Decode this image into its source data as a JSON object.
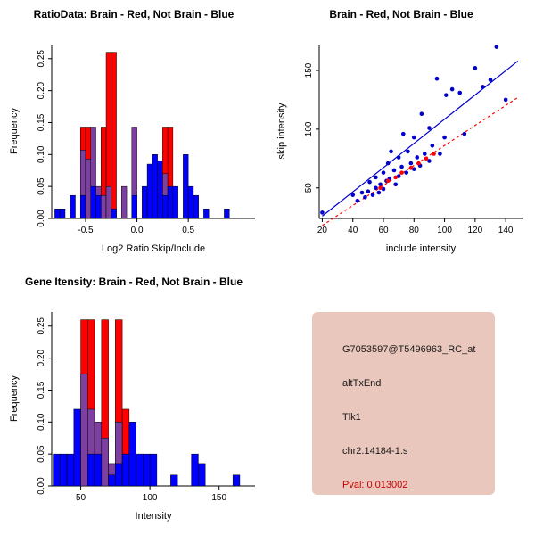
{
  "colors": {
    "red": "#ff0000",
    "blue": "#0000ff",
    "navy": "#0000cc",
    "purple": "#7d40a0",
    "axis": "#000000",
    "pval": "#cc0000",
    "infobox_bg": "#e9c7bc"
  },
  "info_box": {
    "probe_id": "G7053597@T5496963_RC_at",
    "event_type": "altTxEnd",
    "gene_name": "Tlk1",
    "location": "chr2.14184-1.s",
    "pval": "Pval: 0.013002"
  },
  "chart_data": [
    {
      "id": "ratio-hist",
      "type": "bar",
      "title": "RatioData: Brain - Red, Not Brain - Blue",
      "xlabel": "Log2 Ratio Skip/Include",
      "ylabel": "Frequency",
      "xlim": [
        -0.83,
        1.15
      ],
      "ylim": [
        0,
        0.272
      ],
      "xticks": [
        -0.5,
        0,
        0.5
      ],
      "xtick_labels": [
        "-0.5",
        "0.0",
        "0.5"
      ],
      "yticks": [
        0,
        0.05,
        0.1,
        0.15,
        0.2,
        0.25
      ],
      "ytick_labels": [
        "0.00",
        "0.05",
        "0.10",
        "0.15",
        "0.20",
        "0.25"
      ],
      "bin_width": 0.05,
      "bars": [
        {
          "x": -0.8,
          "layers": [
            {
              "color": "blue",
              "h": 0.015
            }
          ]
        },
        {
          "x": -0.75,
          "layers": [
            {
              "color": "blue",
              "h": 0.015
            }
          ]
        },
        {
          "x": -0.65,
          "layers": [
            {
              "color": "blue",
              "h": 0.036
            }
          ]
        },
        {
          "x": -0.55,
          "layers": [
            {
              "color": "red",
              "h": 0.143
            },
            {
              "color": "purple",
              "h": 0.107
            },
            {
              "color": "blue",
              "h": 0.036
            }
          ]
        },
        {
          "x": -0.5,
          "layers": [
            {
              "color": "red",
              "h": 0.143
            },
            {
              "color": "purple",
              "h": 0.093
            }
          ]
        },
        {
          "x": -0.45,
          "layers": [
            {
              "color": "purple",
              "h": 0.143
            },
            {
              "color": "blue",
              "h": 0.05
            }
          ]
        },
        {
          "x": -0.4,
          "layers": [
            {
              "color": "purple",
              "h": 0.05
            },
            {
              "color": "blue",
              "h": 0.036
            }
          ]
        },
        {
          "x": -0.35,
          "layers": [
            {
              "color": "red",
              "h": 0.143
            },
            {
              "color": "purple",
              "h": 0.036
            }
          ]
        },
        {
          "x": -0.3,
          "layers": [
            {
              "color": "red",
              "h": 0.26
            },
            {
              "color": "purple",
              "h": 0.05
            }
          ]
        },
        {
          "x": -0.25,
          "layers": [
            {
              "color": "red",
              "h": 0.26
            },
            {
              "color": "blue",
              "h": 0.015
            }
          ]
        },
        {
          "x": -0.15,
          "layers": [
            {
              "color": "purple",
              "h": 0.05
            }
          ]
        },
        {
          "x": -0.05,
          "layers": [
            {
              "color": "purple",
              "h": 0.143
            },
            {
              "color": "blue",
              "h": 0.036
            }
          ]
        },
        {
          "x": 0.05,
          "layers": [
            {
              "color": "blue",
              "h": 0.05
            }
          ]
        },
        {
          "x": 0.1,
          "layers": [
            {
              "color": "blue",
              "h": 0.085
            }
          ]
        },
        {
          "x": 0.15,
          "layers": [
            {
              "color": "blue",
              "h": 0.1
            }
          ]
        },
        {
          "x": 0.2,
          "layers": [
            {
              "color": "blue",
              "h": 0.09
            }
          ]
        },
        {
          "x": 0.25,
          "layers": [
            {
              "color": "red",
              "h": 0.143
            },
            {
              "color": "purple",
              "h": 0.07
            },
            {
              "color": "blue",
              "h": 0.036
            }
          ]
        },
        {
          "x": 0.3,
          "layers": [
            {
              "color": "red",
              "h": 0.143
            },
            {
              "color": "blue",
              "h": 0.05
            }
          ]
        },
        {
          "x": 0.35,
          "layers": [
            {
              "color": "blue",
              "h": 0.05
            }
          ]
        },
        {
          "x": 0.45,
          "layers": [
            {
              "color": "blue",
              "h": 0.1
            }
          ]
        },
        {
          "x": 0.5,
          "layers": [
            {
              "color": "blue",
              "h": 0.05
            }
          ]
        },
        {
          "x": 0.55,
          "layers": [
            {
              "color": "blue",
              "h": 0.036
            }
          ]
        },
        {
          "x": 0.65,
          "layers": [
            {
              "color": "blue",
              "h": 0.015
            }
          ]
        },
        {
          "x": 0.85,
          "layers": [
            {
              "color": "blue",
              "h": 0.015
            }
          ]
        }
      ]
    },
    {
      "id": "intensity-scatter",
      "type": "scatter",
      "title": "Brain - Red, Not Brain - Blue",
      "xlabel": "include intensity",
      "ylabel": "skip intensity",
      "xlim": [
        18,
        151
      ],
      "ylim": [
        24,
        172
      ],
      "xticks": [
        20,
        40,
        60,
        80,
        100,
        120,
        140
      ],
      "xtick_labels": [
        "20",
        "40",
        "60",
        "80",
        "100",
        "120",
        "140"
      ],
      "yticks": [
        50,
        100,
        150
      ],
      "ytick_labels": [
        "50",
        "100",
        "150"
      ],
      "series": [
        {
          "name": "Not Brain",
          "color": "navy",
          "points": [
            [
              20,
              29
            ],
            [
              40,
              44
            ],
            [
              43,
              39
            ],
            [
              46,
              46
            ],
            [
              48,
              42
            ],
            [
              50,
              47
            ],
            [
              51,
              55
            ],
            [
              53,
              44
            ],
            [
              55,
              50
            ],
            [
              55,
              59
            ],
            [
              57,
              46
            ],
            [
              58,
              53
            ],
            [
              60,
              49
            ],
            [
              60,
              63
            ],
            [
              62,
              56
            ],
            [
              63,
              71
            ],
            [
              64,
              58
            ],
            [
              65,
              81
            ],
            [
              67,
              65
            ],
            [
              68,
              53
            ],
            [
              70,
              60
            ],
            [
              70,
              76
            ],
            [
              72,
              68
            ],
            [
              73,
              96
            ],
            [
              75,
              63
            ],
            [
              76,
              81
            ],
            [
              78,
              71
            ],
            [
              80,
              66
            ],
            [
              80,
              93
            ],
            [
              82,
              76
            ],
            [
              84,
              69
            ],
            [
              85,
              113
            ],
            [
              87,
              79
            ],
            [
              90,
              73
            ],
            [
              90,
              101
            ],
            [
              92,
              86
            ],
            [
              95,
              143
            ],
            [
              97,
              79
            ],
            [
              100,
              93
            ],
            [
              101,
              129
            ],
            [
              105,
              134
            ],
            [
              110,
              131
            ],
            [
              113,
              96
            ],
            [
              120,
              152
            ],
            [
              125,
              136
            ],
            [
              130,
              142
            ],
            [
              134,
              170
            ],
            [
              140,
              125
            ]
          ]
        },
        {
          "name": "Brain",
          "color": "red",
          "points": [
            [
              58,
              50
            ],
            [
              63,
              56
            ],
            [
              68,
              59
            ],
            [
              72,
              63
            ],
            [
              78,
              67
            ],
            [
              83,
              71
            ],
            [
              88,
              75
            ],
            [
              93,
              79
            ]
          ]
        }
      ],
      "lines": [
        {
          "color": "navy",
          "style": "solid",
          "x1": 20,
          "y1": 26,
          "x2": 148,
          "y2": 158
        },
        {
          "color": "red",
          "style": "dashed",
          "x1": 20,
          "y1": 18,
          "x2": 148,
          "y2": 127
        }
      ]
    },
    {
      "id": "gene-hist",
      "type": "bar",
      "title": "Gene Itensity: Brain - Red, Not Brain - Blue",
      "xlabel": "Intensity",
      "ylabel": "Frequency",
      "xlim": [
        29,
        176
      ],
      "ylim": [
        0,
        0.272
      ],
      "xticks": [
        50,
        100,
        150
      ],
      "xtick_labels": [
        "50",
        "100",
        "150"
      ],
      "yticks": [
        0,
        0.05,
        0.1,
        0.15,
        0.2,
        0.25
      ],
      "ytick_labels": [
        "0.00",
        "0.05",
        "0.10",
        "0.15",
        "0.20",
        "0.25"
      ],
      "bin_width": 5,
      "bars": [
        {
          "x": 30,
          "layers": [
            {
              "color": "blue",
              "h": 0.05
            }
          ]
        },
        {
          "x": 35,
          "layers": [
            {
              "color": "blue",
              "h": 0.05
            }
          ]
        },
        {
          "x": 40,
          "layers": [
            {
              "color": "blue",
              "h": 0.05
            }
          ]
        },
        {
          "x": 45,
          "layers": [
            {
              "color": "blue",
              "h": 0.12
            }
          ]
        },
        {
          "x": 50,
          "layers": [
            {
              "color": "red",
              "h": 0.26
            },
            {
              "color": "purple",
              "h": 0.175
            }
          ]
        },
        {
          "x": 55,
          "layers": [
            {
              "color": "red",
              "h": 0.26
            },
            {
              "color": "purple",
              "h": 0.12
            },
            {
              "color": "blue",
              "h": 0.05
            }
          ]
        },
        {
          "x": 60,
          "layers": [
            {
              "color": "purple",
              "h": 0.1
            },
            {
              "color": "blue",
              "h": 0.05
            }
          ]
        },
        {
          "x": 65,
          "layers": [
            {
              "color": "red",
              "h": 0.26
            },
            {
              "color": "purple",
              "h": 0.075
            }
          ]
        },
        {
          "x": 70,
          "layers": [
            {
              "color": "purple",
              "h": 0.035
            },
            {
              "color": "blue",
              "h": 0.017
            }
          ]
        },
        {
          "x": 75,
          "layers": [
            {
              "color": "red",
              "h": 0.26
            },
            {
              "color": "purple",
              "h": 0.1
            },
            {
              "color": "blue",
              "h": 0.035
            }
          ]
        },
        {
          "x": 80,
          "layers": [
            {
              "color": "red",
              "h": 0.12
            },
            {
              "color": "blue",
              "h": 0.05
            }
          ]
        },
        {
          "x": 85,
          "layers": [
            {
              "color": "blue",
              "h": 0.1
            }
          ]
        },
        {
          "x": 90,
          "layers": [
            {
              "color": "blue",
              "h": 0.05
            }
          ]
        },
        {
          "x": 95,
          "layers": [
            {
              "color": "blue",
              "h": 0.05
            }
          ]
        },
        {
          "x": 100,
          "layers": [
            {
              "color": "blue",
              "h": 0.05
            }
          ]
        },
        {
          "x": 115,
          "layers": [
            {
              "color": "blue",
              "h": 0.017
            }
          ]
        },
        {
          "x": 130,
          "layers": [
            {
              "color": "blue",
              "h": 0.05
            }
          ]
        },
        {
          "x": 135,
          "layers": [
            {
              "color": "blue",
              "h": 0.035
            }
          ]
        },
        {
          "x": 160,
          "layers": [
            {
              "color": "blue",
              "h": 0.017
            }
          ]
        }
      ]
    }
  ]
}
